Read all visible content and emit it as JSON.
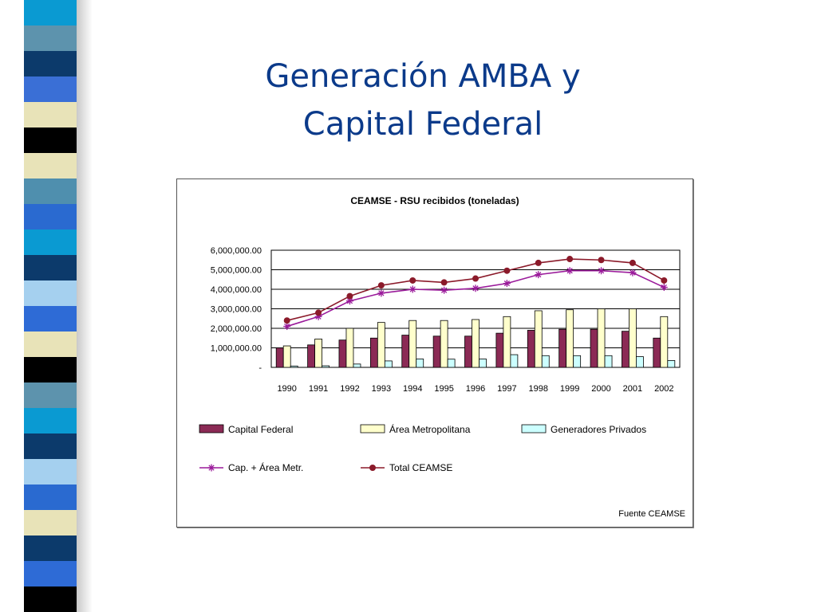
{
  "slide": {
    "title_line1": "Generación AMBA y",
    "title_line2": "Capital Federal"
  },
  "theme": {
    "stripe_colors": [
      "#0a9ad2",
      "#5d93ad",
      "#0c3a6b",
      "#3a6fd6",
      "#e8e3b8",
      "#000000",
      "#e8e3b8",
      "#4f8fae",
      "#2a6ad0",
      "#0a9ad2",
      "#0c3a6b",
      "#a5d0ef",
      "#2e6bd6",
      "#e8e3b8",
      "#000000",
      "#5d93ad",
      "#0a9ad2",
      "#0c3a6b",
      "#a5d0ef",
      "#2a6ad0",
      "#e8e3b8",
      "#0c3a6b",
      "#2e6bd6",
      "#000000"
    ],
    "title_color": "#0b3a8a"
  },
  "chart_data": {
    "type": "bar",
    "title": "CEAMSE - RSU recibidos (toneladas)",
    "categories": [
      "1990",
      "1991",
      "1992",
      "1993",
      "1994",
      "1995",
      "1996",
      "1997",
      "1998",
      "1999",
      "2000",
      "2001",
      "2002"
    ],
    "y_ticks": [
      "6,000,000.00",
      "5,000,000.00",
      "4,000,000.00",
      "3,000,000.00",
      "2,000,000.00",
      "1,000,000.00",
      "-"
    ],
    "ylim": [
      0,
      6000000
    ],
    "grid": true,
    "legend_position": "bottom",
    "series": [
      {
        "name": "Capital Federal",
        "kind": "bar",
        "color": "#8b2a55",
        "values": [
          1000000,
          1150000,
          1400000,
          1500000,
          1650000,
          1600000,
          1600000,
          1750000,
          1900000,
          1950000,
          1950000,
          1850000,
          1500000
        ]
      },
      {
        "name": "Área Metropolitana",
        "kind": "bar",
        "color": "#ffffcc",
        "values": [
          1100000,
          1450000,
          2000000,
          2300000,
          2400000,
          2400000,
          2450000,
          2600000,
          2900000,
          2950000,
          3000000,
          3000000,
          2600000
        ]
      },
      {
        "name": "Generadores Privados",
        "kind": "bar",
        "color": "#ccffff",
        "values": [
          70000,
          80000,
          170000,
          330000,
          430000,
          420000,
          430000,
          650000,
          600000,
          600000,
          600000,
          550000,
          350000
        ]
      },
      {
        "name": "Cap. + Área Metr.",
        "kind": "line",
        "marker": "star",
        "color": "#9a1a9a",
        "values": [
          2100000,
          2600000,
          3400000,
          3800000,
          4000000,
          3950000,
          4050000,
          4300000,
          4750000,
          4950000,
          4950000,
          4850000,
          4100000
        ]
      },
      {
        "name": "Total CEAMSE",
        "kind": "line",
        "marker": "dot",
        "color": "#8b1a2a",
        "values": [
          2400000,
          2800000,
          3650000,
          4200000,
          4450000,
          4350000,
          4550000,
          4950000,
          5350000,
          5550000,
          5500000,
          5350000,
          4450000
        ]
      }
    ],
    "source_note": "Fuente CEAMSE"
  }
}
